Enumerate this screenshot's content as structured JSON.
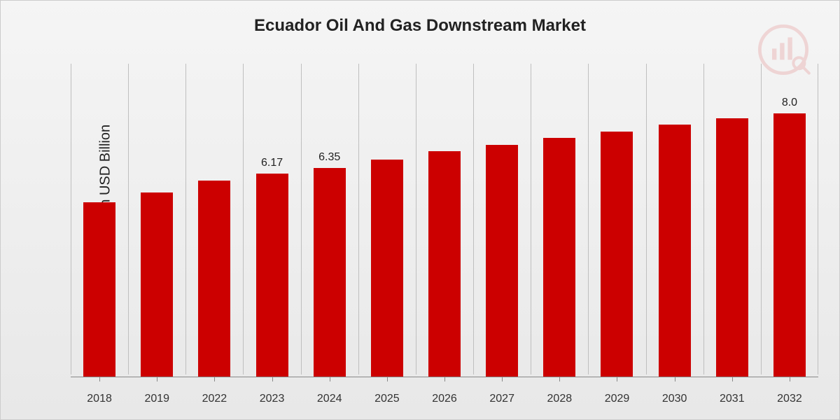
{
  "chart": {
    "type": "bar",
    "title": "Ecuador Oil And Gas Downstream Market",
    "title_fontsize": 24,
    "y_axis_label": "Market Value in USD Billion",
    "y_label_fontsize": 20,
    "categories": [
      "2018",
      "2019",
      "2022",
      "2023",
      "2024",
      "2025",
      "2026",
      "2027",
      "2028",
      "2029",
      "2030",
      "2031",
      "2032"
    ],
    "values": [
      5.3,
      5.6,
      5.95,
      6.17,
      6.35,
      6.6,
      6.85,
      7.05,
      7.25,
      7.45,
      7.65,
      7.85,
      8.0
    ],
    "value_labels": [
      "",
      "",
      "",
      "6.17",
      "6.35",
      "",
      "",
      "",
      "",
      "",
      "",
      "",
      "8.0"
    ],
    "ylim": [
      0,
      9.5
    ],
    "bar_color": "#cc0000",
    "bar_width_ratio": 0.56,
    "background_gradient": [
      "#f5f5f5",
      "#e8e8e8"
    ],
    "grid_separator_color": "#bfbfbf",
    "baseline_color": "#888888",
    "label_color": "#333333",
    "title_color": "#222222",
    "x_label_fontsize": 16,
    "value_label_fontsize": 16,
    "logo_opacity": 0.12
  }
}
